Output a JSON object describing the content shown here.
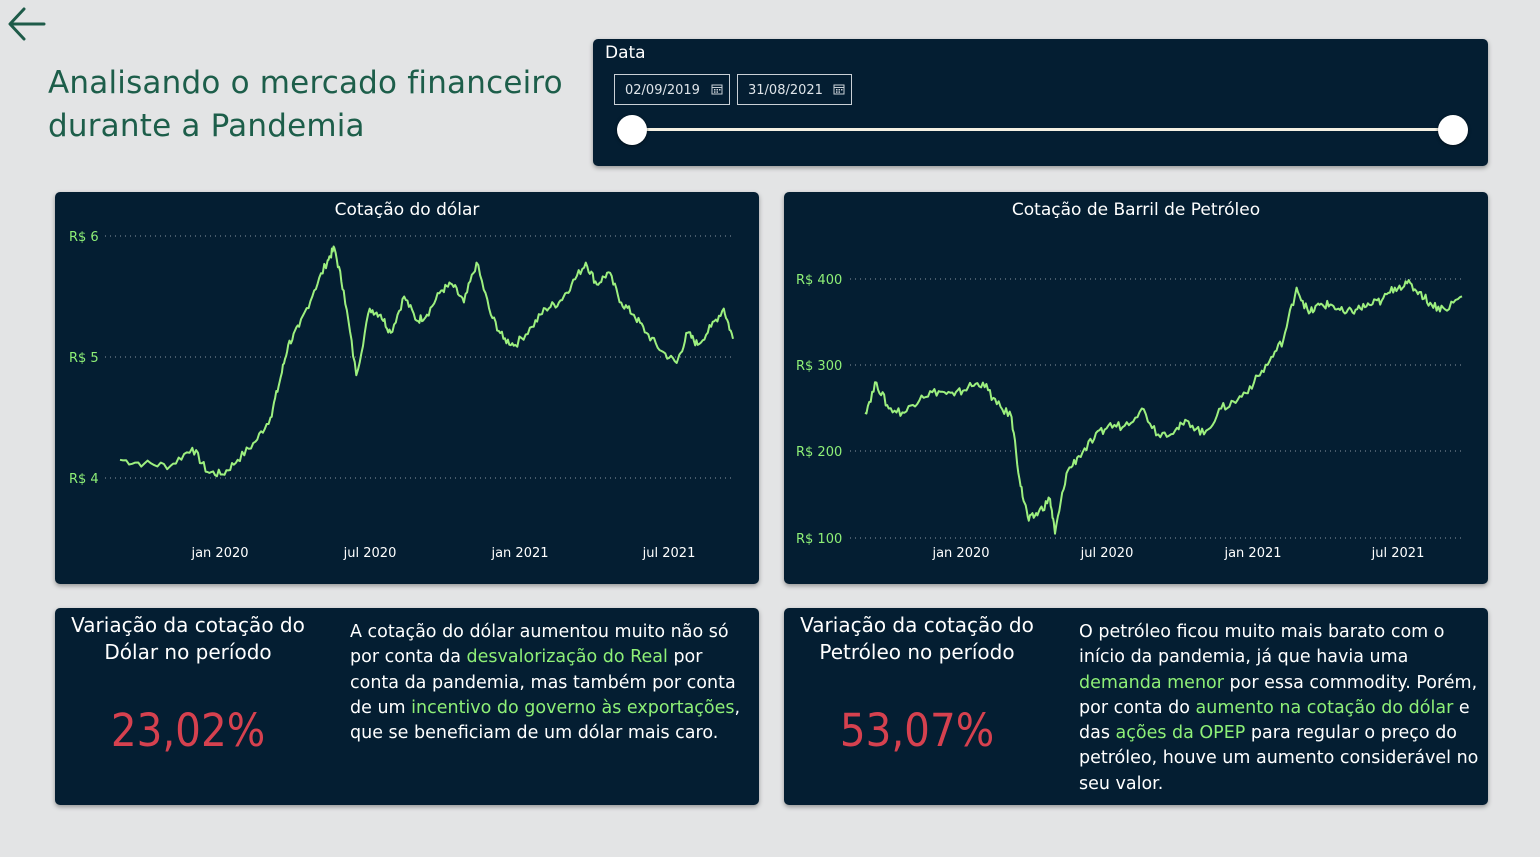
{
  "page": {
    "title": "Analisando o mercado financeiro durante a Pandemia"
  },
  "slicer": {
    "label": "Data",
    "start_date": "02/09/2019",
    "end_date": "31/08/2021",
    "range_fraction": [
      0,
      1
    ]
  },
  "colors": {
    "panel": "#041e32",
    "line": "#9df07f",
    "accent_text": "#8ef077",
    "kpi": "#d6414f",
    "title": "#1d5e4a"
  },
  "chart_data": [
    {
      "type": "line",
      "title": "Cotação do dólar",
      "ytick_labels": [
        "R$ 6",
        "R$ 5",
        "R$ 4"
      ],
      "xtick_labels": [
        "jan 2020",
        "jul 2020",
        "jan 2021",
        "jul 2021"
      ],
      "ylim": [
        4,
        6
      ],
      "xlim": [
        "2019-09-02",
        "2021-08-31"
      ],
      "grid": true,
      "series": [
        {
          "x": [
            "2019-09-02",
            "2019-10-01",
            "2019-11-01",
            "2019-11-27",
            "2019-12-15",
            "2020-01-02",
            "2020-01-20",
            "2020-02-10",
            "2020-02-28",
            "2020-03-10",
            "2020-03-20",
            "2020-04-02",
            "2020-04-20",
            "2020-05-06",
            "2020-05-14",
            "2020-05-25",
            "2020-06-09",
            "2020-06-25",
            "2020-07-08",
            "2020-07-20",
            "2020-08-05",
            "2020-08-20",
            "2020-09-01",
            "2020-09-18",
            "2020-10-01",
            "2020-10-15",
            "2020-10-30",
            "2020-11-16",
            "2020-12-01",
            "2020-12-15",
            "2021-01-04",
            "2021-01-20",
            "2021-02-05",
            "2021-02-20",
            "2021-03-09",
            "2021-03-22",
            "2021-04-05",
            "2021-04-20",
            "2021-05-05",
            "2021-05-20",
            "2021-06-07",
            "2021-06-25",
            "2021-07-08",
            "2021-07-20",
            "2021-08-05",
            "2021-08-20",
            "2021-08-31"
          ],
          "y": [
            4.15,
            4.12,
            4.1,
            4.25,
            4.05,
            4.03,
            4.15,
            4.3,
            4.5,
            4.8,
            5.1,
            5.25,
            5.55,
            5.8,
            5.9,
            5.55,
            4.85,
            5.4,
            5.35,
            5.2,
            5.5,
            5.3,
            5.35,
            5.55,
            5.6,
            5.45,
            5.78,
            5.35,
            5.15,
            5.1,
            5.25,
            5.4,
            5.45,
            5.6,
            5.78,
            5.6,
            5.7,
            5.45,
            5.35,
            5.2,
            5.05,
            4.95,
            5.2,
            5.1,
            5.25,
            5.4,
            5.15
          ]
        }
      ]
    },
    {
      "type": "line",
      "title": "Cotação de Barril de Petróleo",
      "ytick_labels": [
        "R$ 400",
        "R$ 300",
        "R$ 200",
        "R$ 100"
      ],
      "xtick_labels": [
        "jan 2020",
        "jul 2020",
        "jan 2021",
        "jul 2021"
      ],
      "ylim": [
        100,
        400
      ],
      "xlim": [
        "2019-09-02",
        "2021-08-31"
      ],
      "grid": true,
      "series": [
        {
          "x": [
            "2019-09-02",
            "2019-09-16",
            "2019-10-01",
            "2019-10-20",
            "2019-11-10",
            "2019-12-01",
            "2019-12-20",
            "2020-01-06",
            "2020-01-24",
            "2020-02-10",
            "2020-02-28",
            "2020-03-10",
            "2020-03-20",
            "2020-04-01",
            "2020-04-15",
            "2020-04-21",
            "2020-05-05",
            "2020-05-20",
            "2020-06-08",
            "2020-06-25",
            "2020-07-15",
            "2020-08-05",
            "2020-08-25",
            "2020-09-15",
            "2020-10-01",
            "2020-10-20",
            "2020-11-10",
            "2020-11-30",
            "2020-12-20",
            "2021-01-08",
            "2021-01-25",
            "2021-02-10",
            "2021-02-25",
            "2021-03-10",
            "2021-03-25",
            "2021-04-10",
            "2021-04-25",
            "2021-05-10",
            "2021-05-25",
            "2021-06-10",
            "2021-06-25",
            "2021-07-10",
            "2021-07-25",
            "2021-08-10",
            "2021-08-31"
          ],
          "y": [
            245,
            280,
            250,
            245,
            265,
            270,
            265,
            275,
            280,
            255,
            240,
            160,
            120,
            130,
            145,
            105,
            175,
            195,
            215,
            230,
            230,
            250,
            220,
            225,
            235,
            220,
            250,
            260,
            280,
            305,
            330,
            390,
            360,
            370,
            370,
            360,
            365,
            370,
            375,
            390,
            395,
            385,
            370,
            365,
            380
          ]
        }
      ]
    }
  ],
  "kpis": [
    {
      "label": "Variação da cotação do Dólar no período",
      "value": "23,02%",
      "description": [
        {
          "text": "A cotação do dólar aumentou muito não só por conta da "
        },
        {
          "text": "desvalorização do Real",
          "hl": true
        },
        {
          "text": " por conta da pandemia, mas também por conta de um "
        },
        {
          "text": "incentivo do governo às exportações",
          "hl": true
        },
        {
          "text": ", que se beneficiam de um dólar mais caro."
        }
      ]
    },
    {
      "label": "Variação da cotação do Petróleo no período",
      "value": "53,07%",
      "description": [
        {
          "text": "O petróleo ficou muito mais barato com o início da pandemia, já que havia uma "
        },
        {
          "text": "demanda menor",
          "hl": true
        },
        {
          "text": " por essa commodity. Porém, por conta do "
        },
        {
          "text": "aumento na cotação do dólar",
          "hl": true
        },
        {
          "text": " e das "
        },
        {
          "text": "ações da OPEP",
          "hl": true
        },
        {
          "text": " para regular o preço do petróleo, houve um aumento considerável no seu valor."
        }
      ]
    }
  ]
}
